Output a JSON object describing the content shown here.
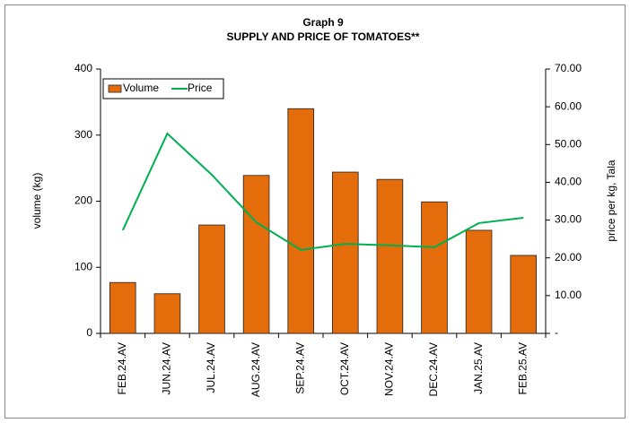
{
  "chart_data": {
    "type": "bar",
    "title": "Graph 9",
    "subtitle": "SUPPLY AND PRICE OF TOMATOES**",
    "y_label": "volume (kg)",
    "y2_label": "price per kg, Tala",
    "categories": [
      "FEB.24.AV",
      "JUN.24.AV",
      "JUL.24.AV",
      "AUG.24.AV",
      "SEP.24.AV",
      "OCT.24.AV",
      "NOV.24.AV",
      "DEC.24.AV",
      "JAN.25.AV",
      "FEB.25.AV"
    ],
    "series": [
      {
        "name": "Volume",
        "type": "bar",
        "color": "#e46c0a",
        "values": [
          77,
          60,
          164,
          239,
          340,
          244,
          233,
          199,
          156,
          118
        ]
      },
      {
        "name": "Price",
        "type": "line",
        "axis": "y2",
        "color": "#00b050",
        "values": [
          27.3,
          52.9,
          42.0,
          29.4,
          22.1,
          23.7,
          23.3,
          22.8,
          29.2,
          30.6
        ]
      }
    ],
    "ylim": [
      0,
      400
    ],
    "yticks": [
      0,
      100,
      200,
      300,
      400
    ],
    "y2lim": [
      0,
      70
    ],
    "y2ticks": [
      {
        "value": 0,
        "label": "-"
      },
      {
        "value": 10,
        "label": "10.00"
      },
      {
        "value": 20,
        "label": "20.00"
      },
      {
        "value": 30,
        "label": "30.00"
      },
      {
        "value": 40,
        "label": "40.00"
      },
      {
        "value": 50,
        "label": "50.00"
      },
      {
        "value": 60,
        "label": "60.00"
      },
      {
        "value": 70,
        "label": "70.00"
      }
    ],
    "legend": "top-left"
  }
}
